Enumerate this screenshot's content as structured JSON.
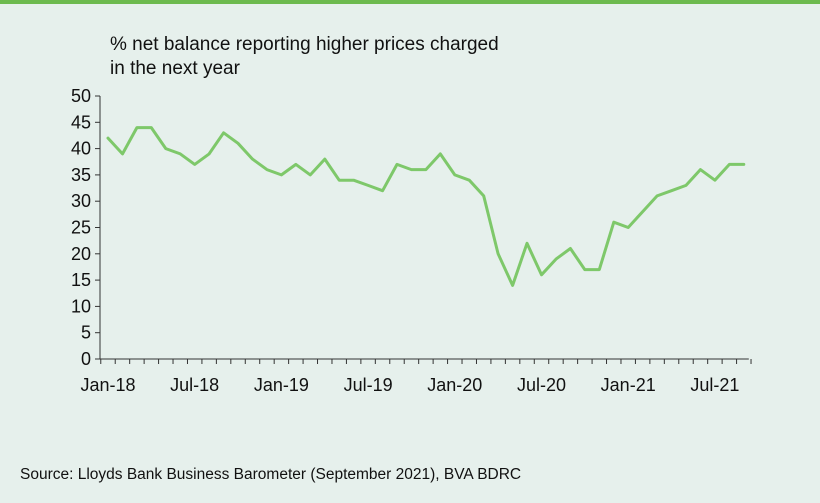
{
  "chart_data": {
    "type": "line",
    "title_lines": [
      "% net balance reporting higher prices charged",
      "in the next year"
    ],
    "xlabel": "",
    "ylabel": "",
    "ylim": [
      0,
      50
    ],
    "yticks": [
      0,
      5,
      10,
      15,
      20,
      25,
      30,
      35,
      40,
      45,
      50
    ],
    "xtick_labels": [
      "Jan-18",
      "Jul-18",
      "Jan-19",
      "Jul-19",
      "Jan-20",
      "Jul-20",
      "Jan-21",
      "Jul-21"
    ],
    "grid": false,
    "line_color": "#7ec86a",
    "x": [
      "Jan-18",
      "Feb-18",
      "Mar-18",
      "Apr-18",
      "May-18",
      "Jun-18",
      "Jul-18",
      "Aug-18",
      "Sep-18",
      "Oct-18",
      "Nov-18",
      "Dec-18",
      "Jan-19",
      "Feb-19",
      "Mar-19",
      "Apr-19",
      "May-19",
      "Jun-19",
      "Jul-19",
      "Aug-19",
      "Sep-19",
      "Oct-19",
      "Nov-19",
      "Dec-19",
      "Jan-20",
      "Feb-20",
      "Mar-20",
      "Apr-20",
      "May-20",
      "Jun-20",
      "Jul-20",
      "Aug-20",
      "Sep-20",
      "Oct-20",
      "Nov-20",
      "Dec-20",
      "Jan-21",
      "Feb-21",
      "Mar-21",
      "Apr-21",
      "May-21",
      "Jun-21",
      "Jul-21",
      "Aug-21",
      "Sep-21"
    ],
    "series": [
      {
        "values": [
          42,
          39,
          44,
          44,
          40,
          39,
          37,
          39,
          43,
          41,
          38,
          36,
          35,
          37,
          35,
          38,
          34,
          34,
          33,
          32,
          37,
          36,
          36,
          39,
          35,
          34,
          31,
          20,
          14,
          22,
          16,
          19,
          21,
          17,
          17,
          26,
          25,
          28,
          31,
          32,
          33,
          36,
          34,
          37,
          37
        ]
      }
    ]
  },
  "source": "Source: Lloyds Bank Business Barometer (September 2021), BVA BDRC",
  "colors": {
    "background": "#e6f0ec",
    "accent": "#6cba4e",
    "axis": "#333333"
  }
}
